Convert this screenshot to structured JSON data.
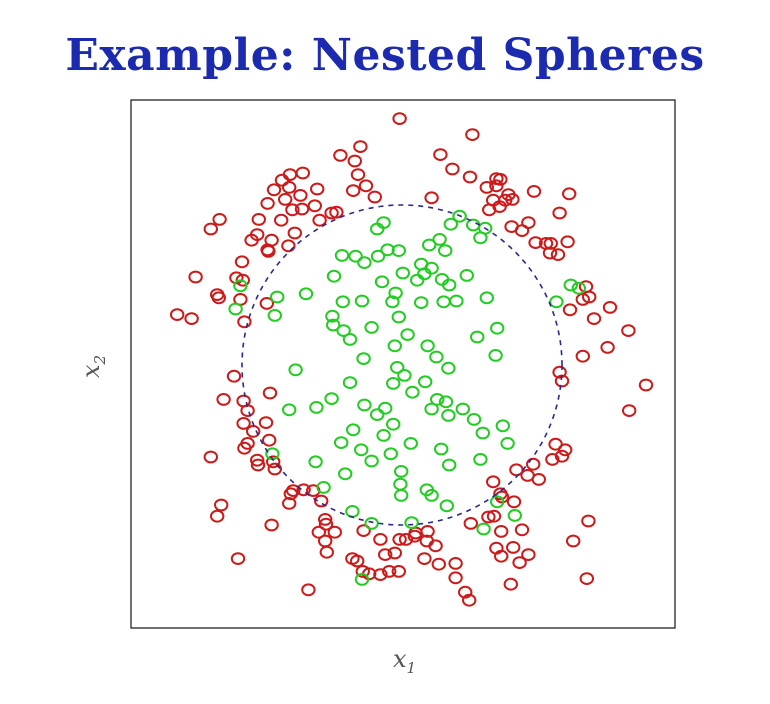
{
  "title": "Example: Nested Spheres",
  "colors": {
    "title": "#1c2ab0",
    "frame": "#333333",
    "boundary": "#2a2a8a"
  },
  "chart_data": {
    "type": "scatter",
    "xlabel": "x",
    "xlabel_sub": "1",
    "ylabel": "x",
    "ylabel_sub": "2",
    "grid": false,
    "xlim": [
      -3.3,
      3.3
    ],
    "ylim": [
      -3.3,
      3.3
    ],
    "boundary": {
      "shape": "circle",
      "center": [
        0,
        0
      ],
      "radius": 2.0,
      "style": "dashed"
    },
    "series": [
      {
        "color": "#cc1a1a",
        "marker": "circle-open",
        "points": [
          [
            -0.03,
            3.08
          ],
          [
            0.88,
            2.88
          ],
          [
            -0.52,
            2.73
          ],
          [
            -0.77,
            2.62
          ],
          [
            0.48,
            2.63
          ],
          [
            -0.59,
            2.55
          ],
          [
            0.63,
            2.45
          ],
          [
            -1.24,
            2.4
          ],
          [
            -0.55,
            2.38
          ],
          [
            1.18,
            2.33
          ],
          [
            1.23,
            2.32
          ],
          [
            -1.4,
            2.38
          ],
          [
            -1.5,
            2.31
          ],
          [
            -0.45,
            2.24
          ],
          [
            0.85,
            2.35
          ],
          [
            1.18,
            2.24
          ],
          [
            1.06,
            2.22
          ],
          [
            -1.06,
            2.2
          ],
          [
            -1.6,
            2.19
          ],
          [
            -1.41,
            2.22
          ],
          [
            -0.61,
            2.18
          ],
          [
            -0.34,
            2.1
          ],
          [
            0.37,
            2.09
          ],
          [
            1.65,
            2.17
          ],
          [
            -1.27,
            2.12
          ],
          [
            1.33,
            2.13
          ],
          [
            1.14,
            2.06
          ],
          [
            1.38,
            2.07
          ],
          [
            1.29,
            2.06
          ],
          [
            1.22,
            1.98
          ],
          [
            -1.46,
            2.07
          ],
          [
            -1.68,
            2.02
          ],
          [
            -1.09,
            1.99
          ],
          [
            2.09,
            2.14
          ],
          [
            -1.25,
            1.95
          ],
          [
            -0.82,
            1.91
          ],
          [
            -0.88,
            1.9
          ],
          [
            1.09,
            1.94
          ],
          [
            -1.79,
            1.82
          ],
          [
            -1.37,
            1.94
          ],
          [
            1.97,
            1.9
          ],
          [
            1.58,
            1.78
          ],
          [
            -1.51,
            1.81
          ],
          [
            1.37,
            1.73
          ],
          [
            1.5,
            1.68
          ],
          [
            -1.03,
            1.81
          ],
          [
            -2.28,
            1.82
          ],
          [
            -1.81,
            1.63
          ],
          [
            -2.39,
            1.7
          ],
          [
            -1.34,
            1.65
          ],
          [
            -1.63,
            1.56
          ],
          [
            1.67,
            1.53
          ],
          [
            1.8,
            1.52
          ],
          [
            -1.88,
            1.56
          ],
          [
            1.86,
            1.52
          ],
          [
            2.07,
            1.54
          ],
          [
            -1.68,
            1.44
          ],
          [
            -1.42,
            1.49
          ],
          [
            -1.67,
            1.42
          ],
          [
            1.85,
            1.4
          ],
          [
            1.95,
            1.38
          ],
          [
            -2.0,
            1.29
          ],
          [
            -2.58,
            1.1
          ],
          [
            -2.07,
            1.09
          ],
          [
            -1.99,
            1.06
          ],
          [
            2.3,
            0.98
          ],
          [
            2.26,
            0.82
          ],
          [
            -2.29,
            0.84
          ],
          [
            2.34,
            0.85
          ],
          [
            2.6,
            0.72
          ],
          [
            -2.02,
            0.82
          ],
          [
            -2.31,
            0.88
          ],
          [
            -1.69,
            0.77
          ],
          [
            -2.81,
            0.63
          ],
          [
            2.1,
            0.69
          ],
          [
            2.4,
            0.58
          ],
          [
            -2.63,
            0.58
          ],
          [
            2.83,
            0.43
          ],
          [
            -1.97,
            0.54
          ],
          [
            2.26,
            0.11
          ],
          [
            2.57,
            0.22
          ],
          [
            3.05,
            -0.25
          ],
          [
            2.84,
            -0.57
          ],
          [
            1.97,
            -0.09
          ],
          [
            -1.65,
            -0.35
          ],
          [
            -2.1,
            -0.14
          ],
          [
            -1.86,
            -0.83
          ],
          [
            -1.98,
            -0.45
          ],
          [
            -1.93,
            -0.57
          ],
          [
            -2.23,
            -0.43
          ],
          [
            2.0,
            -0.2
          ],
          [
            -1.66,
            -0.94
          ],
          [
            -1.93,
            -0.98
          ],
          [
            -1.7,
            -0.72
          ],
          [
            -1.61,
            -1.21
          ],
          [
            -1.98,
            -0.73
          ],
          [
            -1.97,
            -1.04
          ],
          [
            -2.39,
            -1.15
          ],
          [
            -1.81,
            -1.19
          ],
          [
            1.92,
            -0.99
          ],
          [
            2.04,
            -1.06
          ],
          [
            -1.59,
            -1.3
          ],
          [
            -1.8,
            -1.25
          ],
          [
            2.0,
            -1.14
          ],
          [
            1.88,
            -1.18
          ],
          [
            1.43,
            -1.31
          ],
          [
            -1.39,
            -1.61
          ],
          [
            1.57,
            -1.38
          ],
          [
            -1.11,
            -1.57
          ],
          [
            -1.41,
            -1.73
          ],
          [
            1.64,
            -1.24
          ],
          [
            1.71,
            -1.43
          ],
          [
            -1.01,
            -1.7
          ],
          [
            -1.36,
            -1.57
          ],
          [
            1.14,
            -1.46
          ],
          [
            -1.23,
            -1.56
          ],
          [
            1.23,
            -1.61
          ],
          [
            1.4,
            -1.71
          ],
          [
            1.25,
            -1.65
          ],
          [
            1.08,
            -1.9
          ],
          [
            -2.26,
            -1.75
          ],
          [
            -2.31,
            -1.89
          ],
          [
            -1.63,
            -2.0
          ],
          [
            -0.96,
            -1.93
          ],
          [
            -0.95,
            -1.99
          ],
          [
            -0.84,
            -2.09
          ],
          [
            -1.04,
            -2.09
          ],
          [
            -0.96,
            -2.2
          ],
          [
            0.86,
            -1.98
          ],
          [
            1.15,
            -1.89
          ],
          [
            2.33,
            -1.95
          ],
          [
            -0.48,
            -2.07
          ],
          [
            0.32,
            -2.08
          ],
          [
            0.17,
            -2.1
          ],
          [
            0.31,
            -2.2
          ],
          [
            -0.27,
            -2.18
          ],
          [
            0.42,
            -2.26
          ],
          [
            -0.03,
            -2.18
          ],
          [
            0.05,
            -2.18
          ],
          [
            0.16,
            -2.14
          ],
          [
            1.24,
            -2.08
          ],
          [
            1.5,
            -2.06
          ],
          [
            1.39,
            -2.28
          ],
          [
            1.18,
            -2.29
          ],
          [
            2.14,
            -2.2
          ],
          [
            -0.94,
            -2.34
          ],
          [
            -0.21,
            -2.37
          ],
          [
            -0.09,
            -2.35
          ],
          [
            -2.05,
            -2.42
          ],
          [
            -0.56,
            -2.45
          ],
          [
            0.28,
            -2.42
          ],
          [
            0.46,
            -2.49
          ],
          [
            1.58,
            -2.37
          ],
          [
            0.67,
            -2.48
          ],
          [
            -0.62,
            -2.42
          ],
          [
            1.24,
            -2.39
          ],
          [
            -0.41,
            -2.61
          ],
          [
            -0.27,
            -2.62
          ],
          [
            -0.16,
            -2.58
          ],
          [
            -0.04,
            -2.58
          ],
          [
            0.67,
            -2.66
          ],
          [
            1.47,
            -2.47
          ],
          [
            2.31,
            -2.67
          ],
          [
            -0.49,
            -2.58
          ],
          [
            0.79,
            -2.84
          ],
          [
            -1.17,
            -2.81
          ],
          [
            1.36,
            -2.74
          ],
          [
            0.84,
            -2.94
          ]
        ]
      },
      {
        "color": "#22cc22",
        "marker": "circle-open",
        "points": [
          [
            0.72,
            1.86
          ],
          [
            -0.23,
            1.78
          ],
          [
            0.61,
            1.76
          ],
          [
            0.89,
            1.75
          ],
          [
            1.04,
            1.71
          ],
          [
            -0.31,
            1.7
          ],
          [
            0.98,
            1.59
          ],
          [
            0.47,
            1.57
          ],
          [
            -0.18,
            1.44
          ],
          [
            0.34,
            1.5
          ],
          [
            -0.04,
            1.43
          ],
          [
            0.54,
            1.43
          ],
          [
            -0.75,
            1.37
          ],
          [
            -0.58,
            1.36
          ],
          [
            -0.3,
            1.36
          ],
          [
            -0.47,
            1.28
          ],
          [
            0.24,
            1.26
          ],
          [
            0.37,
            1.21
          ],
          [
            0.01,
            1.15
          ],
          [
            -0.85,
            1.11
          ],
          [
            0.28,
            1.14
          ],
          [
            0.81,
            1.12
          ],
          [
            0.19,
            1.06
          ],
          [
            0.5,
            1.07
          ],
          [
            -0.25,
            1.04
          ],
          [
            0.59,
            1.0
          ],
          [
            2.21,
            0.96
          ],
          [
            2.11,
            1.0
          ],
          [
            -2.02,
            0.99
          ],
          [
            -1.56,
            0.85
          ],
          [
            1.06,
            0.84
          ],
          [
            -1.2,
            0.89
          ],
          [
            -0.08,
            0.9
          ],
          [
            -0.5,
            0.8
          ],
          [
            0.52,
            0.79
          ],
          [
            -0.74,
            0.79
          ],
          [
            -0.12,
            0.79
          ],
          [
            0.24,
            0.78
          ],
          [
            0.68,
            0.8
          ],
          [
            -2.08,
            0.7
          ],
          [
            1.93,
            0.79
          ],
          [
            -0.04,
            0.6
          ],
          [
            -0.87,
            0.61
          ],
          [
            -1.59,
            0.62
          ],
          [
            -0.86,
            0.5
          ],
          [
            1.19,
            0.46
          ],
          [
            -0.38,
            0.47
          ],
          [
            -0.73,
            0.43
          ],
          [
            0.07,
            0.38
          ],
          [
            0.94,
            0.35
          ],
          [
            -0.65,
            0.32
          ],
          [
            -0.09,
            0.24
          ],
          [
            0.32,
            0.24
          ],
          [
            0.43,
            0.1
          ],
          [
            -0.48,
            0.08
          ],
          [
            1.17,
            0.12
          ],
          [
            0.58,
            -0.04
          ],
          [
            -0.06,
            -0.03
          ],
          [
            -1.33,
            -0.06
          ],
          [
            0.03,
            -0.13
          ],
          [
            0.29,
            -0.21
          ],
          [
            -0.11,
            -0.23
          ],
          [
            -0.65,
            -0.22
          ],
          [
            0.13,
            -0.34
          ],
          [
            0.44,
            -0.43
          ],
          [
            0.55,
            -0.46
          ],
          [
            -0.88,
            -0.42
          ],
          [
            -0.47,
            -0.5
          ],
          [
            -0.21,
            -0.54
          ],
          [
            -1.07,
            -0.53
          ],
          [
            -1.41,
            -0.56
          ],
          [
            0.37,
            -0.55
          ],
          [
            0.76,
            -0.55
          ],
          [
            -0.31,
            -0.62
          ],
          [
            0.58,
            -0.63
          ],
          [
            -0.11,
            -0.74
          ],
          [
            0.9,
            -0.68
          ],
          [
            1.26,
            -0.76
          ],
          [
            -0.61,
            -0.81
          ],
          [
            1.01,
            -0.85
          ],
          [
            -0.23,
            -0.88
          ],
          [
            -0.76,
            -0.97
          ],
          [
            0.11,
            -0.98
          ],
          [
            1.32,
            -0.98
          ],
          [
            0.49,
            -1.05
          ],
          [
            -0.51,
            -1.06
          ],
          [
            -1.62,
            -1.11
          ],
          [
            -0.14,
            -1.11
          ],
          [
            0.98,
            -1.18
          ],
          [
            -0.38,
            -1.2
          ],
          [
            -1.08,
            -1.21
          ],
          [
            0.59,
            -1.25
          ],
          [
            -0.71,
            -1.36
          ],
          [
            -0.01,
            -1.33
          ],
          [
            -0.02,
            -1.49
          ],
          [
            0.31,
            -1.56
          ],
          [
            -0.98,
            -1.53
          ],
          [
            -0.01,
            -1.63
          ],
          [
            0.37,
            -1.63
          ],
          [
            1.19,
            -1.71
          ],
          [
            0.56,
            -1.76
          ],
          [
            -0.62,
            -1.83
          ],
          [
            1.41,
            -1.88
          ],
          [
            0.12,
            -1.97
          ],
          [
            -0.38,
            -1.98
          ],
          [
            1.02,
            -2.05
          ],
          [
            -0.5,
            -2.68
          ]
        ]
      }
    ]
  }
}
